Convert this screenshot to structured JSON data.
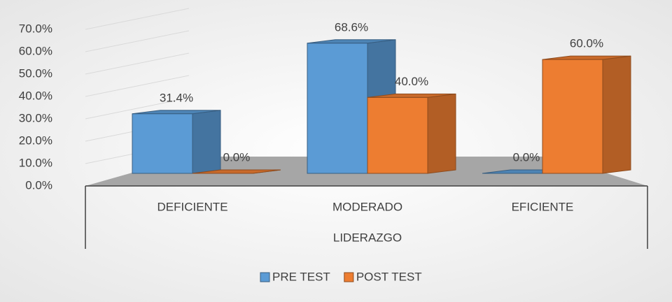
{
  "chart_data": {
    "type": "bar3d",
    "categories": [
      "DEFICIENTE",
      "MODERADO",
      "EFICIENTE"
    ],
    "x_label": "LIDERAZGO",
    "series": [
      {
        "name": "PRE TEST",
        "color": "#5b9bd5",
        "values": [
          31.4,
          68.6,
          0.0
        ],
        "value_labels": [
          "31.4%",
          "68.6%",
          "0.0%"
        ]
      },
      {
        "name": "POST TEST",
        "color": "#ed7d31",
        "values": [
          0.0,
          40.0,
          60.0
        ],
        "value_labels": [
          "0.0%",
          "40.0%",
          "60.0%"
        ]
      }
    ],
    "ylim": [
      0,
      70
    ],
    "yticks": [
      {
        "value": 0,
        "label": "0.0%"
      },
      {
        "value": 10,
        "label": "10.0%"
      },
      {
        "value": 20,
        "label": "20.0%"
      },
      {
        "value": 30,
        "label": "30.0%"
      },
      {
        "value": 40,
        "label": "40.0%"
      },
      {
        "value": 50,
        "label": "50.0%"
      },
      {
        "value": 60,
        "label": "60.0%"
      },
      {
        "value": 70,
        "label": "70.0%"
      }
    ],
    "grid": true,
    "legend": "bottom"
  }
}
